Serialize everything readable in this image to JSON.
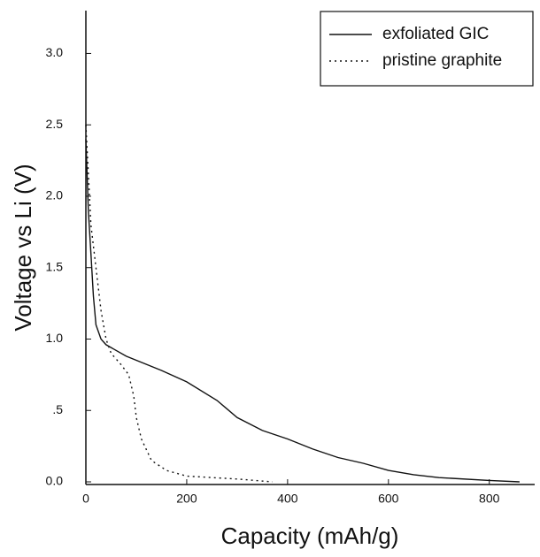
{
  "chart_data": {
    "type": "line",
    "x_label": "Capacity (mAh/g)",
    "y_label": "Voltage vs Li (V)",
    "xlim": [
      0,
      890
    ],
    "ylim": [
      0,
      3.3
    ],
    "xticks": [
      0,
      200,
      400,
      600,
      800
    ],
    "yticks": [
      {
        "value": 0,
        "label": "0.0"
      },
      {
        "value": 0.5,
        "label": ".5"
      },
      {
        "value": 1,
        "label": "1.0"
      },
      {
        "value": 1.5,
        "label": "1.5"
      },
      {
        "value": 2,
        "label": "2.0"
      },
      {
        "value": 2.5,
        "label": "2.5"
      },
      {
        "value": 3,
        "label": "3.0"
      }
    ],
    "legend": "upper right",
    "series": [
      {
        "name": "exfoliated GIC",
        "color": "#111111",
        "dash": "solid",
        "x": [
          0,
          5,
          10,
          15,
          20,
          30,
          40,
          80,
          150,
          200,
          260,
          300,
          350,
          400,
          450,
          500,
          550,
          600,
          650,
          700,
          800,
          860
        ],
        "values": [
          2.4,
          1.9,
          1.6,
          1.3,
          1.1,
          1.0,
          0.96,
          0.88,
          0.78,
          0.7,
          0.57,
          0.45,
          0.36,
          0.3,
          0.23,
          0.17,
          0.13,
          0.08,
          0.05,
          0.03,
          0.01,
          0
        ]
      },
      {
        "name": "pristine graphite",
        "color": "#111111",
        "dash": "dotted",
        "x": [
          0,
          10,
          20,
          30,
          40,
          50,
          70,
          85,
          95,
          100,
          110,
          130,
          160,
          200,
          300,
          370
        ],
        "values": [
          2.5,
          1.8,
          1.5,
          1.2,
          1.0,
          0.9,
          0.82,
          0.75,
          0.6,
          0.45,
          0.3,
          0.15,
          0.08,
          0.04,
          0.02,
          0
        ]
      }
    ]
  }
}
